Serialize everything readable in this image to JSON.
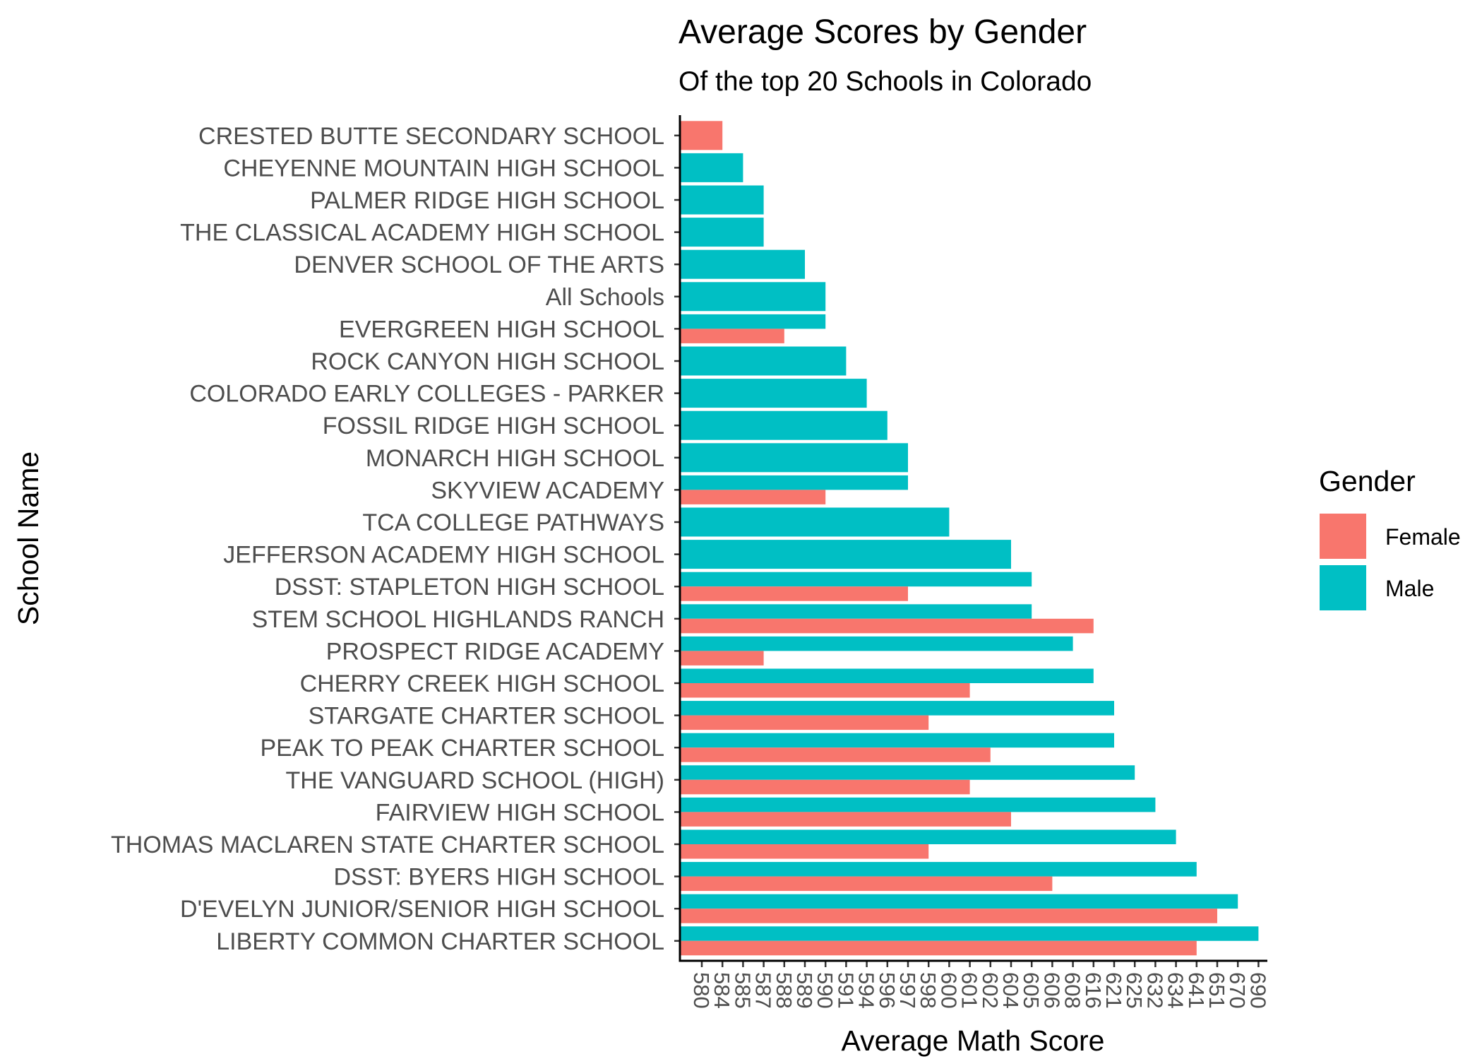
{
  "chart_data": {
    "type": "bar",
    "orientation": "horizontal",
    "position": "dodge",
    "title": "Average Scores by Gender",
    "subtitle": "Of the top 20 Schools in Colorado",
    "xlabel": "Average Math Score",
    "ylabel": "School Name",
    "grid": false,
    "x_axis_type": "discrete",
    "x_ticks": [
      "580",
      "584",
      "585",
      "587",
      "588",
      "589",
      "590",
      "591",
      "594",
      "596",
      "597",
      "598",
      "600",
      "601",
      "602",
      "604",
      "605",
      "606",
      "608",
      "616",
      "621",
      "625",
      "632",
      "634",
      "641",
      "651",
      "670",
      "690"
    ],
    "legend": {
      "title": "Gender",
      "position": "right",
      "entries": [
        {
          "name": "Female",
          "color": "#F8766D"
        },
        {
          "name": "Male",
          "color": "#00BFC4"
        }
      ]
    },
    "categories": [
      "CRESTED BUTTE SECONDARY SCHOOL",
      "CHEYENNE MOUNTAIN HIGH SCHOOL",
      "PALMER RIDGE HIGH SCHOOL",
      "THE CLASSICAL ACADEMY HIGH SCHOOL",
      "DENVER SCHOOL OF THE ARTS",
      "All Schools",
      "EVERGREEN HIGH SCHOOL",
      "ROCK CANYON HIGH SCHOOL",
      "COLORADO EARLY COLLEGES - PARKER",
      "FOSSIL RIDGE HIGH SCHOOL",
      "MONARCH HIGH SCHOOL",
      "SKYVIEW ACADEMY",
      "TCA COLLEGE PATHWAYS",
      "JEFFERSON ACADEMY HIGH SCHOOL",
      "DSST: STAPLETON HIGH SCHOOL",
      "STEM SCHOOL HIGHLANDS RANCH",
      "PROSPECT RIDGE ACADEMY",
      "CHERRY CREEK HIGH SCHOOL",
      "STARGATE CHARTER SCHOOL",
      "PEAK TO PEAK CHARTER SCHOOL",
      "THE VANGUARD SCHOOL (HIGH)",
      "FAIRVIEW HIGH SCHOOL",
      "THOMAS MACLAREN STATE CHARTER SCHOOL",
      "DSST: BYERS HIGH SCHOOL",
      "D'EVELYN JUNIOR/SENIOR HIGH SCHOOL",
      "LIBERTY COMMON CHARTER SCHOOL"
    ],
    "series": [
      {
        "name": "Female",
        "color": "#F8766D",
        "values": [
          "584",
          null,
          null,
          null,
          null,
          null,
          "588",
          null,
          null,
          null,
          null,
          "590",
          null,
          null,
          "597",
          "616",
          "587",
          "601",
          "598",
          "602",
          "601",
          "604",
          "598",
          "606",
          "651",
          "641"
        ]
      },
      {
        "name": "Male",
        "color": "#00BFC4",
        "values": [
          null,
          "585",
          "587",
          "587",
          "589",
          "590",
          "590",
          "591",
          "594",
          "596",
          "597",
          "597",
          "600",
          "604",
          "605",
          "605",
          "608",
          "616",
          "621",
          "621",
          "625",
          "632",
          "634",
          "641",
          "670",
          "690"
        ]
      }
    ]
  }
}
